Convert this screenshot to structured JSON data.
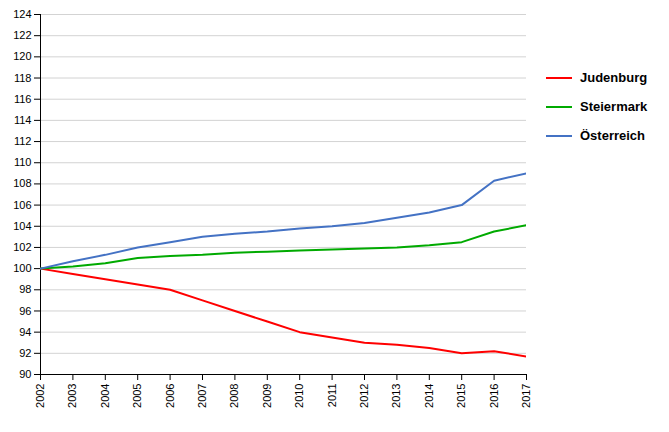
{
  "chart_data": {
    "type": "line",
    "x": [
      2002,
      2003,
      2004,
      2005,
      2006,
      2007,
      2008,
      2009,
      2010,
      2011,
      2012,
      2013,
      2014,
      2015,
      2016,
      2017
    ],
    "series": [
      {
        "name": "Judenburg",
        "color": "#FF0000",
        "values": [
          100.0,
          99.5,
          99.0,
          98.5,
          98.0,
          97.0,
          96.0,
          95.0,
          94.0,
          93.5,
          93.0,
          92.8,
          92.5,
          92.0,
          92.2,
          91.7
        ]
      },
      {
        "name": "Steiermark",
        "color": "#00AA00",
        "values": [
          100.0,
          100.2,
          100.5,
          101.0,
          101.2,
          101.3,
          101.5,
          101.6,
          101.7,
          101.8,
          101.9,
          102.0,
          102.2,
          102.5,
          103.5,
          104.1
        ]
      },
      {
        "name": "Österreich",
        "color": "#4472C4",
        "values": [
          100.0,
          100.7,
          101.3,
          102.0,
          102.5,
          103.0,
          103.3,
          103.5,
          103.8,
          104.0,
          104.3,
          104.8,
          105.3,
          106.0,
          108.3,
          109.0
        ]
      }
    ],
    "xlim": [
      2002,
      2017
    ],
    "xticks": [
      2002,
      2003,
      2004,
      2005,
      2006,
      2007,
      2008,
      2009,
      2010,
      2011,
      2012,
      2013,
      2014,
      2015,
      2016,
      2017
    ],
    "ylim": [
      90,
      124
    ],
    "yticks": [
      90,
      92,
      94,
      96,
      98,
      100,
      102,
      104,
      106,
      108,
      110,
      112,
      114,
      116,
      118,
      120,
      122,
      124
    ],
    "grid": true,
    "legend": "right"
  }
}
